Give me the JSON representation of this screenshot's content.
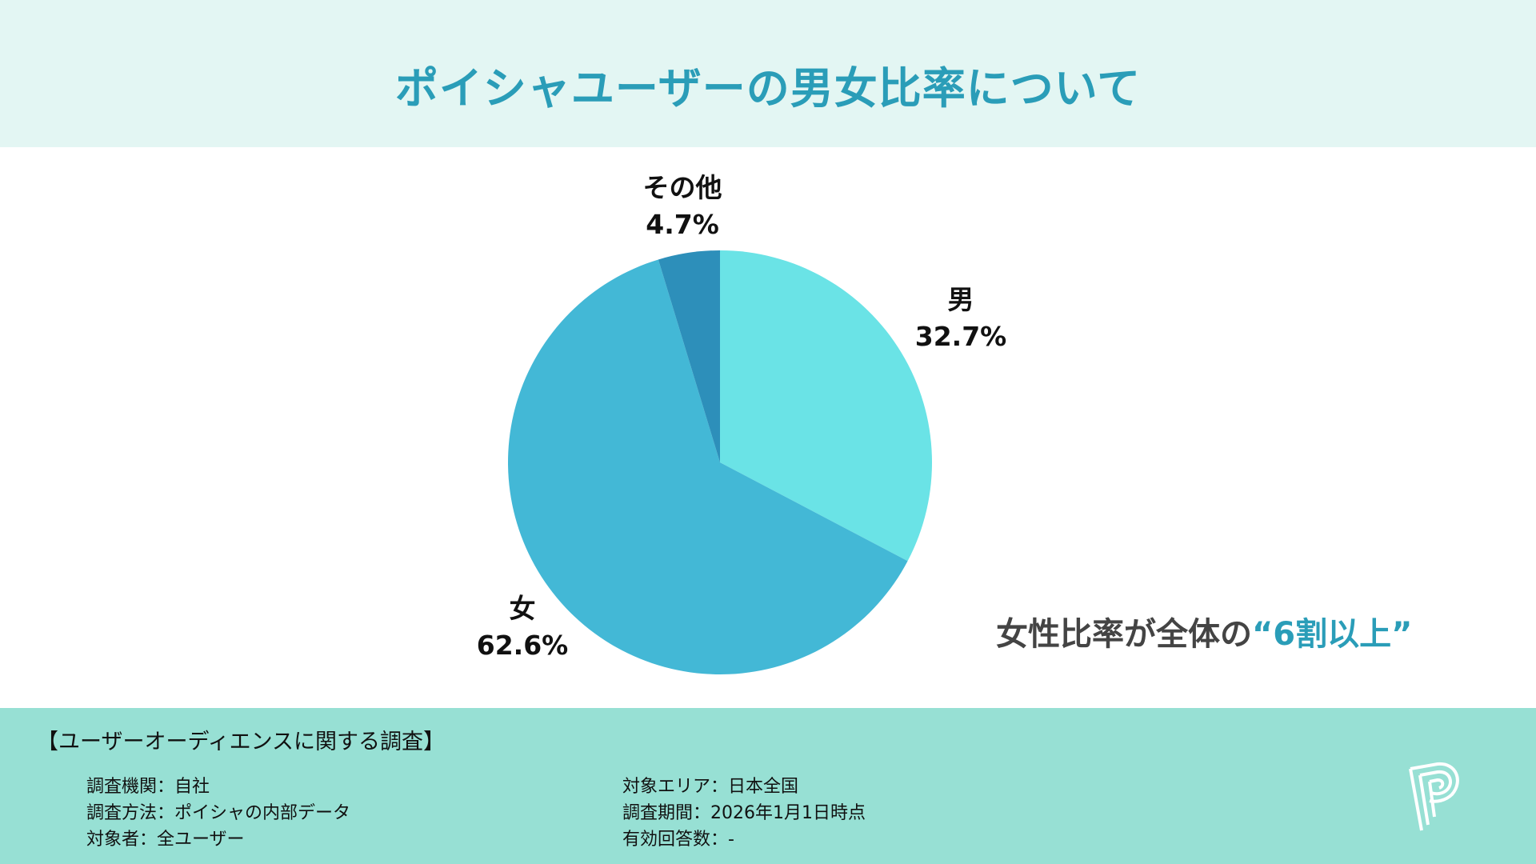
{
  "header": {
    "title": "ポイシャユーザーの男女比率について"
  },
  "chart_data": {
    "type": "pie",
    "title": "ポイシャユーザーの男女比率について",
    "start": "top",
    "direction": "clockwise",
    "slices": [
      {
        "label": "男",
        "value": 32.7,
        "display": "32.7%",
        "color": "#6ae3e6"
      },
      {
        "label": "女",
        "value": 62.6,
        "display": "62.6%",
        "color": "#43b8d6"
      },
      {
        "label": "その他",
        "value": 4.7,
        "display": "4.7%",
        "color": "#2d8fba"
      }
    ]
  },
  "callout": {
    "prefix": "女性比率が全体の",
    "highlight": "“6割以上”"
  },
  "footer": {
    "heading": "【ユーザーオーディエンスに関する調査】",
    "left": [
      "調査機関：自社",
      "調査方法：ポイシャの内部データ",
      "対象者：全ユーザー"
    ],
    "right": [
      "対象エリア：日本全国",
      "調査期間：2026年1月1日時点",
      "有効回答数：-"
    ],
    "logo": "P"
  }
}
